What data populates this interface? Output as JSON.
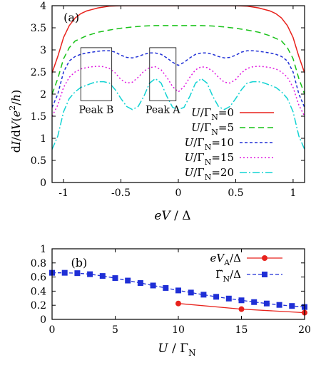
{
  "chart_data": [
    {
      "type": "line",
      "panel_label": "(a)",
      "xlabel_parts": {
        "eV": "eV",
        "slash": " / ",
        "delta": "Δ"
      },
      "ylabel_parts": {
        "a": "d",
        "b": "I",
        "c": "/d",
        "d": "V",
        "e": "(",
        "f": "e",
        "g": "2",
        "h": "/",
        "i": "h",
        "j": ")"
      },
      "xlim": [
        -1.1,
        1.1
      ],
      "ylim": [
        0,
        4
      ],
      "xticks": [
        -1,
        -0.5,
        0,
        0.5,
        1
      ],
      "xtick_labels": [
        "-1",
        "-0.5",
        "0",
        "0.5",
        "1"
      ],
      "yticks": [
        0,
        0.5,
        1,
        1.5,
        2,
        2.5,
        3,
        3.5,
        4
      ],
      "ytick_labels": [
        "0",
        "0.5",
        "1",
        "1.5",
        "2",
        "2.5",
        "3",
        "3.5",
        "4"
      ],
      "legend_placement": "bottom-right",
      "annotations": [
        {
          "text": "Peak B",
          "box_x": [
            -0.85,
            -0.58
          ],
          "box_y": [
            1.85,
            3.05
          ]
        },
        {
          "text": "Peak A",
          "box_x": [
            -0.25,
            -0.02
          ],
          "box_y": [
            1.85,
            3.05
          ]
        }
      ],
      "series": [
        {
          "legend": {
            "U": "U",
            "slash": "/",
            "G": "Γ",
            "N": "N",
            "eq": "=0"
          },
          "color": "#e8221c",
          "dash": "none",
          "x": [
            -1.1,
            -1.05,
            -1.0,
            -0.95,
            -0.9,
            -0.85,
            -0.8,
            -0.7,
            -0.6,
            -0.5,
            -0.4,
            -0.3,
            -0.2,
            -0.1,
            0,
            0.1,
            0.2,
            0.3,
            0.4,
            0.5,
            0.6,
            0.7,
            0.8,
            0.85,
            0.9,
            0.95,
            1.0,
            1.05,
            1.1
          ],
          "y": [
            2.48,
            2.85,
            3.28,
            3.55,
            3.72,
            3.82,
            3.88,
            3.95,
            3.99,
            4.0,
            4.0,
            4.0,
            4.0,
            4.0,
            4.0,
            4.0,
            4.0,
            4.0,
            4.0,
            4.0,
            3.99,
            3.95,
            3.88,
            3.82,
            3.72,
            3.55,
            3.28,
            2.85,
            2.48
          ]
        },
        {
          "legend": {
            "U": "U",
            "slash": "/",
            "G": "Γ",
            "N": "N",
            "eq": "=5"
          },
          "color": "#17c217",
          "dash": "8,5",
          "x": [
            -1.1,
            -1.05,
            -1.0,
            -0.95,
            -0.9,
            -0.8,
            -0.7,
            -0.6,
            -0.5,
            -0.4,
            -0.3,
            -0.2,
            -0.1,
            0,
            0.1,
            0.2,
            0.3,
            0.4,
            0.5,
            0.6,
            0.7,
            0.8,
            0.9,
            0.95,
            1.0,
            1.05,
            1.1
          ],
          "y": [
            2.0,
            2.35,
            2.8,
            3.05,
            3.2,
            3.32,
            3.4,
            3.45,
            3.49,
            3.52,
            3.54,
            3.55,
            3.55,
            3.55,
            3.55,
            3.55,
            3.54,
            3.52,
            3.49,
            3.45,
            3.4,
            3.32,
            3.2,
            3.05,
            2.8,
            2.35,
            2.0
          ]
        },
        {
          "legend": {
            "U": "U",
            "slash": "/",
            "G": "Γ",
            "N": "N",
            "eq": "=10"
          },
          "color": "#1f2fd6",
          "dash": "4,3",
          "x": [
            -1.1,
            -1.05,
            -1.0,
            -0.95,
            -0.9,
            -0.85,
            -0.8,
            -0.75,
            -0.7,
            -0.65,
            -0.6,
            -0.55,
            -0.5,
            -0.45,
            -0.4,
            -0.35,
            -0.3,
            -0.25,
            -0.2,
            -0.15,
            -0.1,
            -0.05,
            0,
            0.05,
            0.1,
            0.15,
            0.2,
            0.25,
            0.3,
            0.35,
            0.4,
            0.45,
            0.5,
            0.55,
            0.6,
            0.65,
            0.7,
            0.75,
            0.8,
            0.85,
            0.9,
            0.95,
            1.0,
            1.05,
            1.1
          ],
          "y": [
            1.7,
            2.0,
            2.5,
            2.75,
            2.85,
            2.9,
            2.93,
            2.95,
            2.97,
            2.98,
            2.98,
            2.95,
            2.88,
            2.83,
            2.82,
            2.85,
            2.9,
            2.93,
            2.93,
            2.9,
            2.82,
            2.72,
            2.65,
            2.72,
            2.82,
            2.9,
            2.93,
            2.93,
            2.9,
            2.85,
            2.82,
            2.83,
            2.88,
            2.95,
            2.98,
            2.98,
            2.97,
            2.95,
            2.93,
            2.9,
            2.85,
            2.75,
            2.5,
            2.0,
            1.7
          ]
        },
        {
          "legend": {
            "U": "U",
            "slash": "/",
            "G": "Γ",
            "N": "N",
            "eq": "=15"
          },
          "color": "#e018e0",
          "dash": "2,3",
          "x": [
            -1.1,
            -1.05,
            -1.0,
            -0.95,
            -0.9,
            -0.85,
            -0.8,
            -0.75,
            -0.7,
            -0.65,
            -0.6,
            -0.55,
            -0.5,
            -0.45,
            -0.4,
            -0.35,
            -0.3,
            -0.25,
            -0.2,
            -0.15,
            -0.1,
            -0.05,
            0,
            0.05,
            0.1,
            0.15,
            0.2,
            0.25,
            0.3,
            0.35,
            0.4,
            0.45,
            0.5,
            0.55,
            0.6,
            0.65,
            0.7,
            0.75,
            0.8,
            0.85,
            0.9,
            0.95,
            1.0,
            1.05,
            1.1
          ],
          "y": [
            1.5,
            1.75,
            2.15,
            2.38,
            2.5,
            2.57,
            2.6,
            2.62,
            2.63,
            2.62,
            2.58,
            2.48,
            2.33,
            2.25,
            2.27,
            2.38,
            2.52,
            2.6,
            2.62,
            2.55,
            2.38,
            2.17,
            2.05,
            2.17,
            2.38,
            2.55,
            2.62,
            2.6,
            2.52,
            2.38,
            2.27,
            2.25,
            2.33,
            2.48,
            2.58,
            2.62,
            2.63,
            2.62,
            2.6,
            2.57,
            2.5,
            2.38,
            2.15,
            1.75,
            1.5
          ]
        },
        {
          "legend": {
            "U": "U",
            "slash": "/",
            "G": "Γ",
            "N": "N",
            "eq": "=20"
          },
          "color": "#12d3d3",
          "dash": "10,3,2,3",
          "x": [
            -1.1,
            -1.05,
            -1.0,
            -0.95,
            -0.9,
            -0.85,
            -0.8,
            -0.75,
            -0.7,
            -0.65,
            -0.6,
            -0.55,
            -0.5,
            -0.45,
            -0.4,
            -0.35,
            -0.3,
            -0.25,
            -0.2,
            -0.15,
            -0.1,
            -0.05,
            0,
            0.05,
            0.1,
            0.15,
            0.2,
            0.25,
            0.3,
            0.35,
            0.4,
            0.45,
            0.5,
            0.55,
            0.6,
            0.65,
            0.7,
            0.75,
            0.8,
            0.85,
            0.9,
            0.95,
            1.0,
            1.05,
            1.1
          ],
          "y": [
            0.75,
            1.05,
            1.6,
            1.9,
            2.05,
            2.15,
            2.2,
            2.25,
            2.28,
            2.28,
            2.25,
            2.1,
            1.9,
            1.72,
            1.65,
            1.72,
            1.95,
            2.25,
            2.35,
            2.25,
            1.95,
            1.7,
            1.65,
            1.7,
            1.95,
            2.25,
            2.35,
            2.25,
            1.95,
            1.72,
            1.65,
            1.72,
            1.9,
            2.1,
            2.25,
            2.28,
            2.28,
            2.25,
            2.2,
            2.15,
            2.05,
            1.9,
            1.6,
            1.05,
            0.75
          ]
        }
      ]
    },
    {
      "type": "line",
      "panel_label": "(b)",
      "xlabel_parts": {
        "U": "U",
        "slash": " / ",
        "G": "Γ",
        "N": "N"
      },
      "xlim": [
        0,
        20
      ],
      "ylim": [
        0,
        1
      ],
      "xticks": [
        0,
        5,
        10,
        15,
        20
      ],
      "xtick_labels": [
        "0",
        "5",
        "10",
        "15",
        "20"
      ],
      "yticks": [
        0,
        0.2,
        0.4,
        0.6,
        0.8,
        1
      ],
      "ytick_labels": [
        "0",
        "0.2",
        "0.4",
        "0.6",
        "0.8",
        "1"
      ],
      "legend_placement": "top-right",
      "series": [
        {
          "legend": {
            "a": "eV",
            "b": "A",
            "c": "/Δ"
          },
          "color": "#e8221c",
          "dash": "none",
          "marker": "circle",
          "x": [
            10,
            15,
            20
          ],
          "y": [
            0.225,
            0.145,
            0.095
          ]
        },
        {
          "legend": {
            "a": "Γ̃",
            "b": "N",
            "c": "/Δ"
          },
          "color": "#1f2fd6",
          "dash": "5,3",
          "marker": "square",
          "x": [
            0,
            1,
            2,
            3,
            4,
            5,
            6,
            7,
            8,
            9,
            10,
            11,
            12,
            13,
            14,
            15,
            16,
            17,
            18,
            19,
            20
          ],
          "y": [
            0.66,
            0.66,
            0.655,
            0.64,
            0.615,
            0.585,
            0.55,
            0.515,
            0.48,
            0.445,
            0.41,
            0.38,
            0.35,
            0.32,
            0.295,
            0.27,
            0.245,
            0.225,
            0.205,
            0.19,
            0.175
          ]
        }
      ]
    }
  ]
}
